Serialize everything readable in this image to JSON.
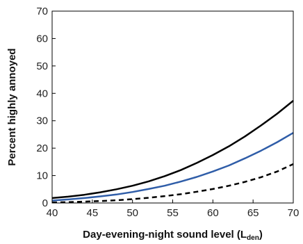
{
  "chart_data": {
    "type": "line",
    "title": "",
    "xlabel": "Day-evening-night sound level (L",
    "xlabel_subscript": "den",
    "xlabel_suffix": ")",
    "ylabel": "Percent highly annoyed",
    "xlim": [
      40,
      70
    ],
    "ylim": [
      0,
      70
    ],
    "xticks": [
      40,
      45,
      50,
      55,
      60,
      65,
      70
    ],
    "yticks": [
      0,
      10,
      20,
      30,
      40,
      50,
      60,
      70
    ],
    "grid": false,
    "legend": "none",
    "x": [
      40,
      42,
      44,
      46,
      48,
      50,
      52,
      54,
      56,
      58,
      60,
      62,
      64,
      66,
      68,
      70
    ],
    "series": [
      {
        "color": "#000000",
        "style": "solid",
        "values": [
          1.8,
          2.3,
          3.0,
          3.9,
          5.0,
          6.3,
          7.9,
          9.8,
          12.0,
          14.6,
          17.5,
          20.7,
          24.3,
          28.3,
          32.6,
          37.3
        ]
      },
      {
        "color": "#2f5da8",
        "style": "solid",
        "values": [
          0.9,
          1.3,
          1.8,
          2.4,
          3.1,
          4.0,
          5.1,
          6.3,
          7.8,
          9.5,
          11.5,
          13.7,
          16.3,
          19.1,
          22.2,
          25.6
        ]
      },
      {
        "color": "#000000",
        "style": "dashed",
        "values": [
          0.2,
          0.3,
          0.5,
          0.7,
          1.0,
          1.4,
          1.9,
          2.5,
          3.2,
          4.1,
          5.1,
          6.3,
          7.7,
          9.4,
          11.5,
          14.2
        ]
      }
    ]
  }
}
